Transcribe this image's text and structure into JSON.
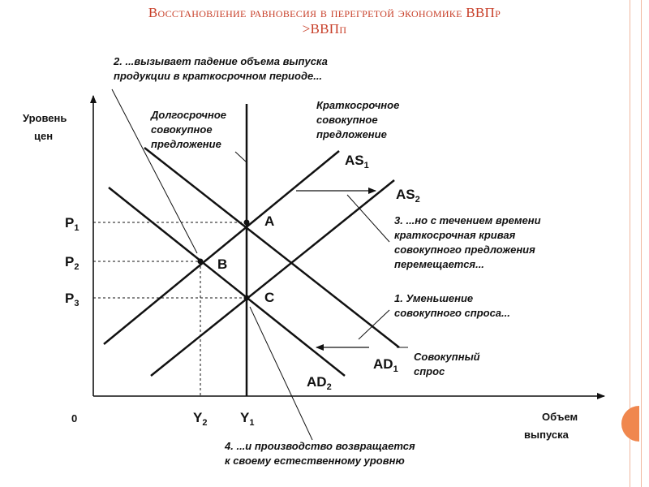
{
  "slide": {
    "title_line1": "Восстановление равновесия в перегретой экономике ВВПр",
    "title_line2": ">ВВПп"
  },
  "diagram": {
    "y_axis_label_1": "Уровень",
    "y_axis_label_2": "цен",
    "x_axis_label_1": "Объем",
    "x_axis_label_2": "выпуска",
    "origin": "0",
    "price_levels": [
      {
        "base": "P",
        "sub": "1"
      },
      {
        "base": "P",
        "sub": "2"
      },
      {
        "base": "P",
        "sub": "3"
      }
    ],
    "output_levels": [
      {
        "base": "Y",
        "sub": "2"
      },
      {
        "base": "Y",
        "sub": "1"
      }
    ],
    "points": [
      "A",
      "B",
      "C"
    ],
    "curves": {
      "as1": {
        "base": "AS",
        "sub": "1"
      },
      "as2": {
        "base": "AS",
        "sub": "2"
      },
      "ad1": {
        "base": "AD",
        "sub": "1"
      },
      "ad2": {
        "base": "AD",
        "sub": "2"
      }
    },
    "lras_label": [
      "Долгосрочное",
      "совокупное",
      "предложение"
    ],
    "sras_label": [
      "Краткосрочное",
      "совокупное",
      "предложение"
    ],
    "ad_label": [
      "Совокупный",
      "спрос"
    ],
    "notes": {
      "note1": [
        "1. Уменьшение",
        "совокупного спроса..."
      ],
      "note2": [
        "2. ...вызывает падение объема выпуска",
        "продукции в краткосрочном периоде..."
      ],
      "note3": [
        "3. ...но с течением времени",
        "краткосрочная кривая",
        "совокупного предложения",
        "перемещается..."
      ],
      "note4": [
        "4. ...и производство возвращается",
        "к своему естественному уровню"
      ]
    },
    "colors": {
      "title": "#c8402a",
      "line": "#111111",
      "accent_tab": "#f0874e"
    }
  }
}
